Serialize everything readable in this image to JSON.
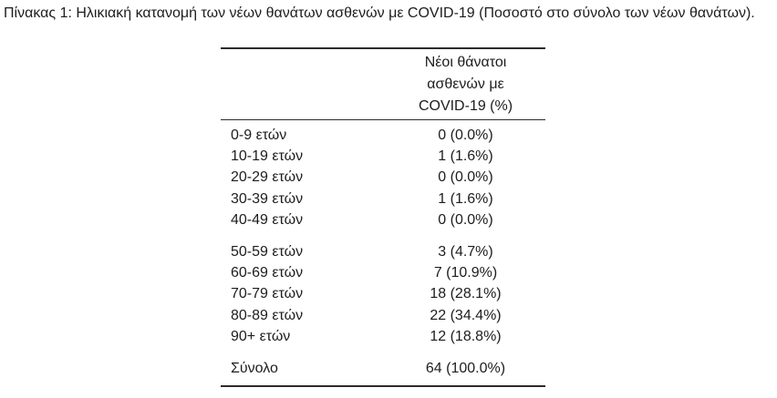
{
  "caption": {
    "text": "Πίνακας 1: Ηλικιακή κατανομή των νέων θανάτων ασθενών με COVID-19 (Ποσοστό στο σύνολο των νέων θανάτων)."
  },
  "table": {
    "header_lines": [
      "Νέοι θάνατοι",
      "ασθενών με",
      "COVID-19 (%)"
    ],
    "groups": [
      {
        "rows": [
          {
            "label": "0-9 ετών",
            "value": "0 (0.0%)"
          },
          {
            "label": "10-19 ετών",
            "value": "1 (1.6%)"
          },
          {
            "label": "20-29 ετών",
            "value": "0 (0.0%)"
          },
          {
            "label": "30-39 ετών",
            "value": "1 (1.6%)"
          },
          {
            "label": "40-49 ετών",
            "value": "0 (0.0%)"
          }
        ]
      },
      {
        "rows": [
          {
            "label": "50-59 ετών",
            "value": "3 (4.7%)"
          },
          {
            "label": "60-69 ετών",
            "value": "7 (10.9%)"
          },
          {
            "label": "70-79 ετών",
            "value": "18 (28.1%)"
          },
          {
            "label": "80-89 ετών",
            "value": "22 (34.4%)"
          },
          {
            "label": "90+ ετών",
            "value": "12 (18.8%)"
          }
        ]
      },
      {
        "is_total": true,
        "rows": [
          {
            "label": "Σύνολο",
            "value": "64 (100.0%)"
          }
        ]
      }
    ]
  },
  "colors": {
    "background": "#ffffff",
    "text": "#1d1d1d",
    "rule": "#2b2b2b"
  },
  "chart_data": {
    "type": "table",
    "title": "Πίνακας 1: Ηλικιακή κατανομή των νέων θανάτων ασθενών με COVID-19 (Ποσοστό στο σύνολο των νέων θανάτων).",
    "columns": [
      "",
      "Νέοι θάνατοι ασθενών με COVID-19 (%)"
    ],
    "categories": [
      "0-9 ετών",
      "10-19 ετών",
      "20-29 ετών",
      "30-39 ετών",
      "40-49 ετών",
      "50-59 ετών",
      "60-69 ετών",
      "70-79 ετών",
      "80-89 ετών",
      "90+ ετών"
    ],
    "counts": [
      0,
      1,
      0,
      1,
      0,
      3,
      7,
      18,
      22,
      12
    ],
    "percents": [
      0.0,
      1.6,
      0.0,
      1.6,
      0.0,
      4.7,
      10.9,
      28.1,
      34.4,
      18.8
    ],
    "total_label": "Σύνολο",
    "total_count": 64,
    "total_percent": 100.0
  }
}
